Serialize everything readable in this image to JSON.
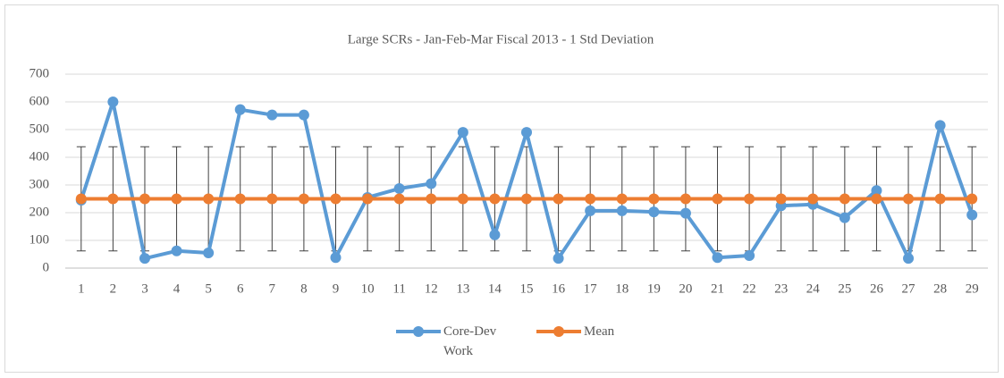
{
  "chart_data": {
    "type": "line",
    "title": "Large SCRs - Jan-Feb-Mar  Fiscal 2013  - 1 Std Deviation",
    "categories": [
      "1",
      "2",
      "3",
      "4",
      "5",
      "6",
      "7",
      "8",
      "9",
      "10",
      "11",
      "12",
      "13",
      "14",
      "15",
      "16",
      "17",
      "18",
      "19",
      "20",
      "21",
      "22",
      "23",
      "24",
      "25",
      "26",
      "27",
      "28",
      "29"
    ],
    "series": [
      {
        "name": "Core-Dev Work",
        "color": "#5b9bd5",
        "values": [
          245,
          600,
          35,
          62,
          55,
          572,
          553,
          553,
          38,
          255,
          287,
          305,
          490,
          120,
          490,
          35,
          207,
          207,
          203,
          198,
          38,
          45,
          225,
          230,
          182,
          280,
          35,
          515,
          192
        ]
      },
      {
        "name": "Mean",
        "color": "#ed7d31",
        "values": [
          250,
          250,
          250,
          250,
          250,
          250,
          250,
          250,
          250,
          250,
          250,
          250,
          250,
          250,
          250,
          250,
          250,
          250,
          250,
          250,
          250,
          250,
          250,
          250,
          250,
          250,
          250,
          250,
          250
        ],
        "errors": [
          188,
          188,
          188,
          188,
          188,
          188,
          188,
          188,
          188,
          188,
          188,
          188,
          188,
          188,
          188,
          188,
          188,
          188,
          188,
          188,
          188,
          188,
          188,
          188,
          188,
          188,
          188,
          188,
          188
        ]
      }
    ],
    "ylim": [
      0,
      700
    ],
    "yticks": [
      0,
      100,
      200,
      300,
      400,
      500,
      600,
      700
    ],
    "grid": true,
    "legend": "bottom"
  }
}
